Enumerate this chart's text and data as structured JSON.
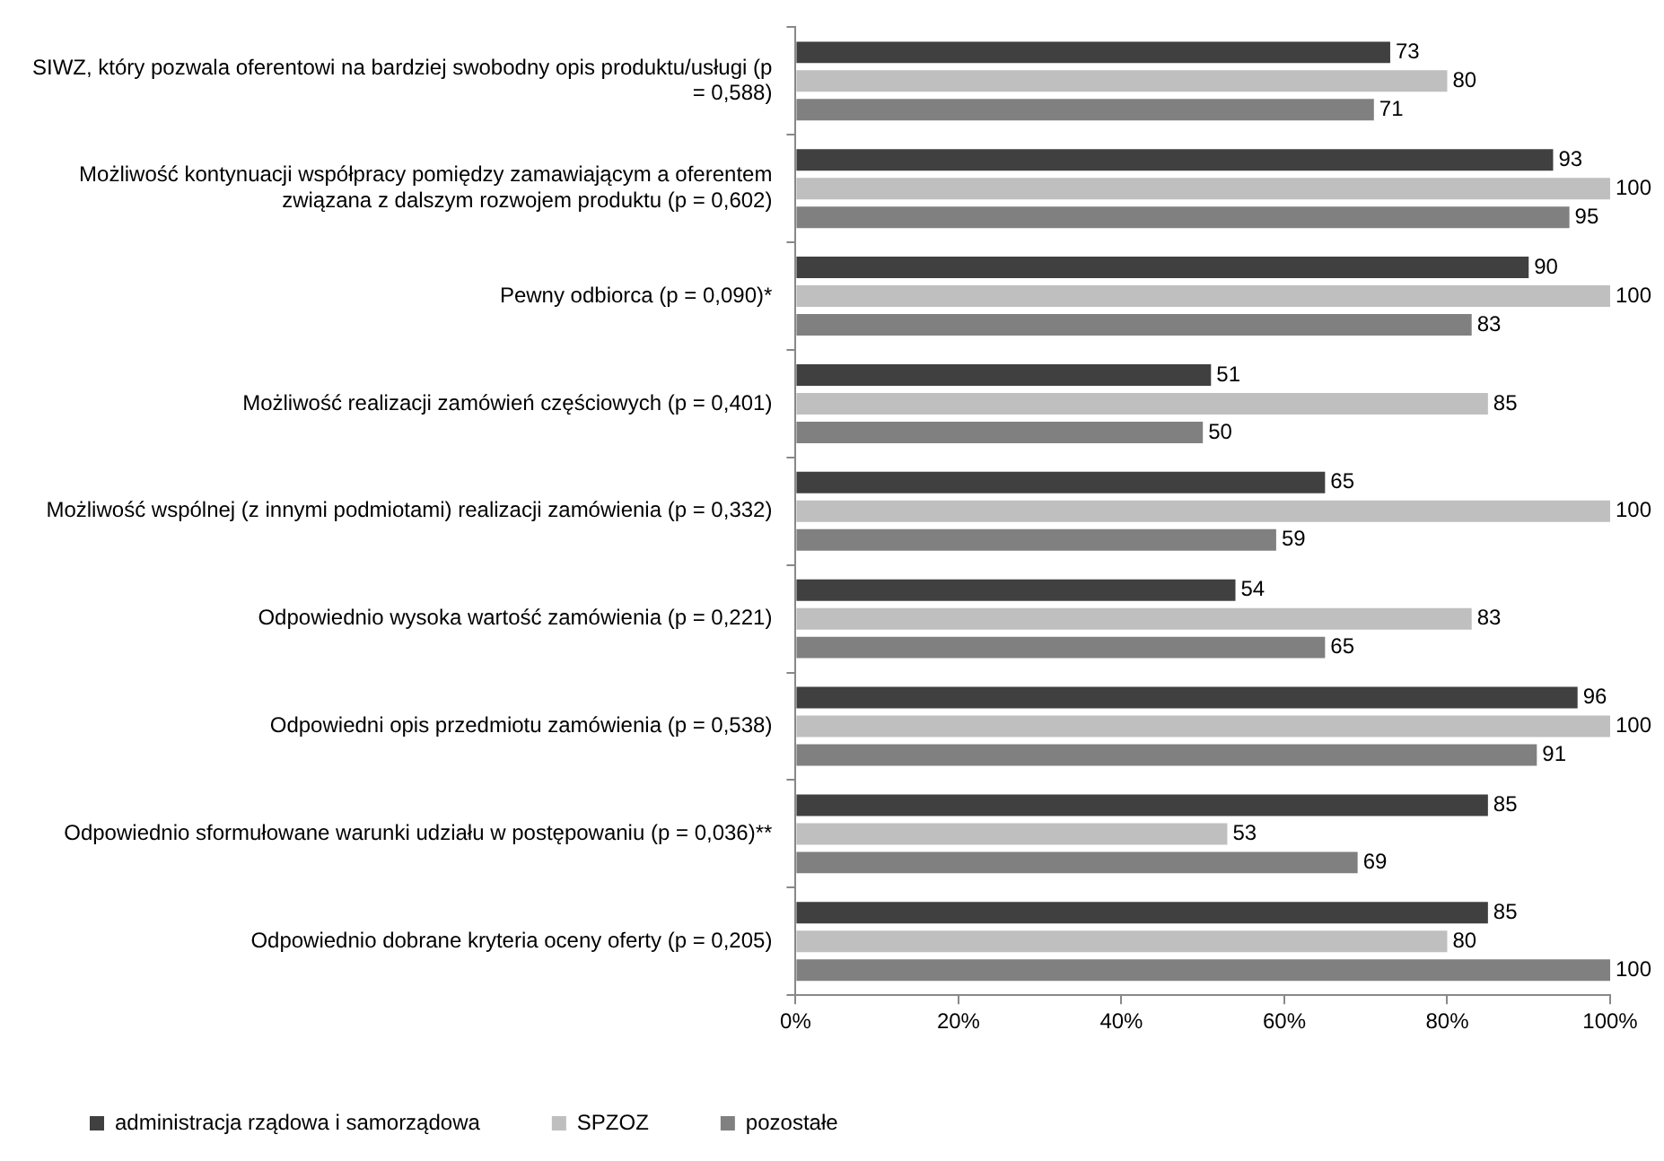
{
  "chart_data": {
    "type": "bar",
    "orientation": "horizontal",
    "categories": [
      "SIWZ, który pozwala oferentowi na bardziej swobodny opis produktu/usługi (p = 0,588)",
      "Możliwość kontynuacji współpracy pomiędzy zamawiającym a oferentem związana z dalszym rozwojem produktu (p = 0,602)",
      "Pewny odbiorca (p = 0,090)*",
      "Możliwość realizacji zamówień częściowych (p = 0,401)",
      "Możliwość wspólnej (z innymi podmiotami) realizacji zamówienia (p = 0,332)",
      "Odpowiednio wysoka wartość zamówienia (p = 0,221)",
      "Odpowiedni opis przedmiotu zamówienia (p = 0,538)",
      "Odpowiednio sformułowane warunki udziału w postępowaniu (p = 0,036)**",
      "Odpowiednio dobrane kryteria oceny oferty (p = 0,205)"
    ],
    "series": [
      {
        "name": "administracja rządowa i samorządowa",
        "color": "#404040",
        "values": [
          73,
          93,
          90,
          51,
          65,
          54,
          96,
          85,
          85
        ]
      },
      {
        "name": "SPZOZ",
        "color": "#bfbfbf",
        "values": [
          80,
          100,
          100,
          85,
          100,
          83,
          100,
          53,
          80
        ]
      },
      {
        "name": "pozostałe",
        "color": "#808080",
        "values": [
          71,
          95,
          83,
          50,
          59,
          65,
          91,
          69,
          100
        ]
      }
    ],
    "xlim": [
      0,
      100
    ],
    "xticks": [
      {
        "value": 0,
        "label": "0%"
      },
      {
        "value": 20,
        "label": "20%"
      },
      {
        "value": 40,
        "label": "40%"
      },
      {
        "value": 60,
        "label": "60%"
      },
      {
        "value": 80,
        "label": "80%"
      },
      {
        "value": 100,
        "label": "100%"
      }
    ],
    "grid": false,
    "legend": "bottom left",
    "data_labels": true
  }
}
